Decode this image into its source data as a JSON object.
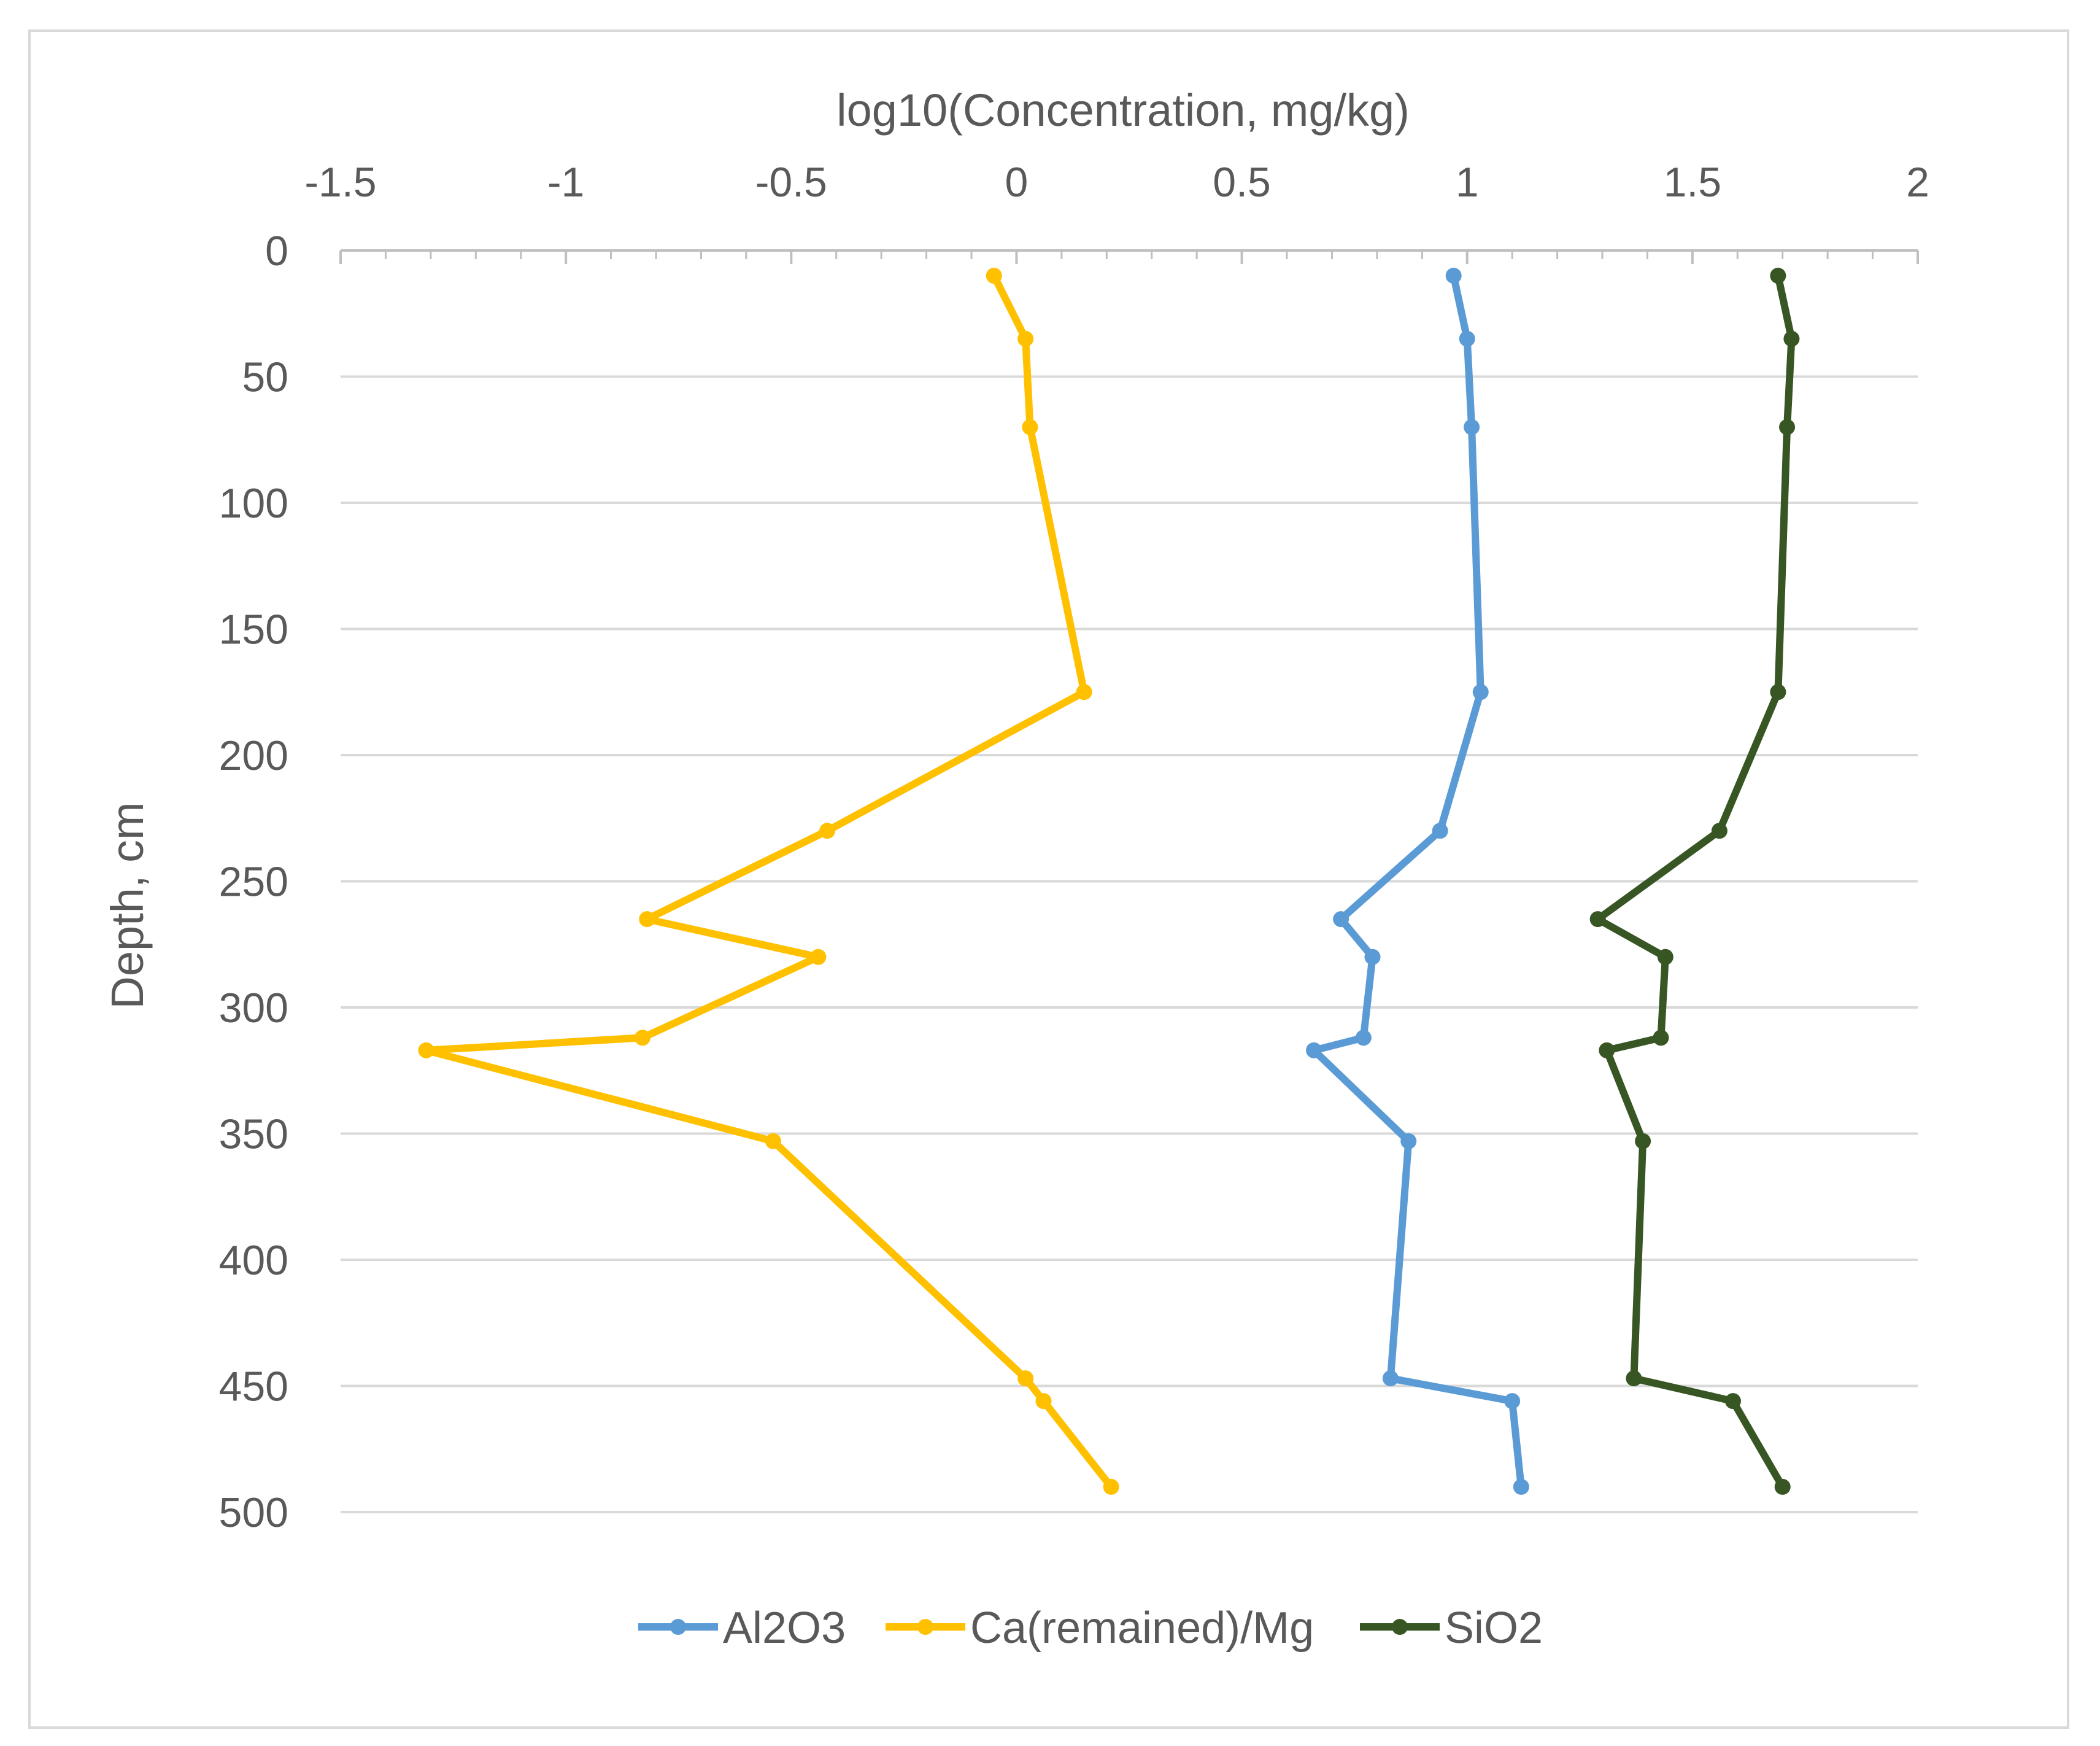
{
  "chart_data": {
    "type": "line",
    "orientation": "vertical-profile",
    "title": "",
    "xlabel": "log10(Concentration, mg/kg)",
    "ylabel": "Depth, cm",
    "x_axis_position": "top",
    "y_axis_inverted": true,
    "xlim": [
      -1.5,
      2
    ],
    "ylim": [
      0,
      500
    ],
    "x_ticks": [
      -1.5,
      -1,
      -0.5,
      0,
      0.5,
      1,
      1.5,
      2
    ],
    "x_tick_labels": [
      "-1.5",
      "-1",
      "-0.5",
      "0",
      "0.5",
      "1",
      "1.5",
      "2"
    ],
    "y_ticks": [
      0,
      50,
      100,
      150,
      200,
      250,
      300,
      350,
      400,
      450,
      500
    ],
    "y_tick_labels": [
      "0",
      "50",
      "100",
      "150",
      "200",
      "250",
      "300",
      "350",
      "400",
      "450",
      "500"
    ],
    "grid": "horizontal",
    "legend_position": "bottom",
    "series": [
      {
        "name": "Al2O3",
        "color": "#5b9bd5",
        "points": [
          {
            "x": 0.97,
            "depth": 10
          },
          {
            "x": 1.0,
            "depth": 35
          },
          {
            "x": 1.01,
            "depth": 70
          },
          {
            "x": 1.03,
            "depth": 175
          },
          {
            "x": 0.94,
            "depth": 230
          },
          {
            "x": 0.72,
            "depth": 265
          },
          {
            "x": 0.79,
            "depth": 280
          },
          {
            "x": 0.77,
            "depth": 312
          },
          {
            "x": 0.66,
            "depth": 317
          },
          {
            "x": 0.87,
            "depth": 353
          },
          {
            "x": 0.83,
            "depth": 447
          },
          {
            "x": 1.1,
            "depth": 456
          },
          {
            "x": 1.12,
            "depth": 490
          }
        ]
      },
      {
        "name": "Ca(remained)/Mg",
        "color": "#ffc000",
        "points": [
          {
            "x": -0.05,
            "depth": 10
          },
          {
            "x": 0.02,
            "depth": 35
          },
          {
            "x": 0.03,
            "depth": 70
          },
          {
            "x": 0.15,
            "depth": 175
          },
          {
            "x": -0.42,
            "depth": 230
          },
          {
            "x": -0.82,
            "depth": 265
          },
          {
            "x": -0.44,
            "depth": 280
          },
          {
            "x": -0.83,
            "depth": 312
          },
          {
            "x": -1.31,
            "depth": 317
          },
          {
            "x": -0.54,
            "depth": 353
          },
          {
            "x": 0.02,
            "depth": 447
          },
          {
            "x": 0.06,
            "depth": 456
          },
          {
            "x": 0.21,
            "depth": 490
          }
        ]
      },
      {
        "name": "SiO2",
        "color": "#375623",
        "points": [
          {
            "x": 1.69,
            "depth": 10
          },
          {
            "x": 1.72,
            "depth": 35
          },
          {
            "x": 1.71,
            "depth": 70
          },
          {
            "x": 1.69,
            "depth": 175
          },
          {
            "x": 1.56,
            "depth": 230
          },
          {
            "x": 1.29,
            "depth": 265
          },
          {
            "x": 1.44,
            "depth": 280
          },
          {
            "x": 1.43,
            "depth": 312
          },
          {
            "x": 1.31,
            "depth": 317
          },
          {
            "x": 1.39,
            "depth": 353
          },
          {
            "x": 1.37,
            "depth": 447
          },
          {
            "x": 1.59,
            "depth": 456
          },
          {
            "x": 1.7,
            "depth": 490
          }
        ]
      }
    ]
  }
}
